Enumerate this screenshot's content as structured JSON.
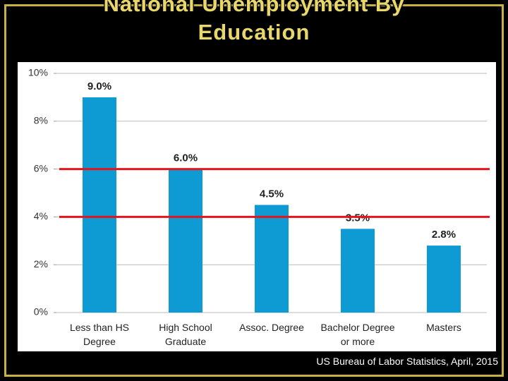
{
  "title": "National Unemployment By Education",
  "source": "US Bureau of Labor Statistics, April, 2015",
  "chart_data": {
    "type": "bar",
    "categories": [
      "Less than HS Degree",
      "High School Graduate",
      "Assoc. Degree",
      "Bachelor Degree or more",
      "Masters"
    ],
    "values": [
      9.0,
      6.0,
      4.5,
      3.5,
      2.8
    ],
    "value_labels": [
      "9.0%",
      "6.0%",
      "4.5%",
      "3.5%",
      "2.8%"
    ],
    "color": "#0e9ad2",
    "ylim": [
      0,
      10
    ],
    "yticks": [
      {
        "value": 0,
        "label": "0%"
      },
      {
        "value": 2,
        "label": "2%"
      },
      {
        "value": 4,
        "label": "4%"
      },
      {
        "value": 6,
        "label": "6%"
      },
      {
        "value": 8,
        "label": "8%"
      },
      {
        "value": 10,
        "label": "10%"
      }
    ],
    "grid": true,
    "reference_lines": [
      6,
      4
    ],
    "reference_color": "#e3141b"
  }
}
